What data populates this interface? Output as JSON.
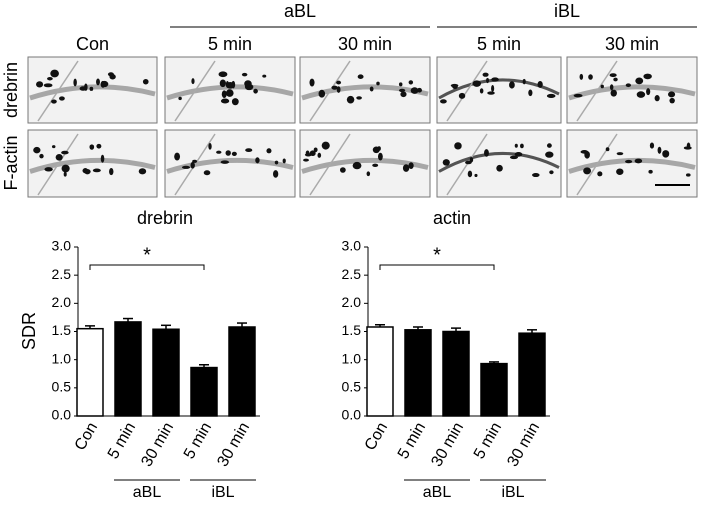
{
  "micrograph": {
    "group_labels": [
      "aBL",
      "iBL"
    ],
    "column_labels": [
      "Con",
      "5 min",
      "30 min",
      "5 min",
      "30 min"
    ],
    "row_labels": [
      "drebrin",
      "F-actin"
    ]
  },
  "chart_data": [
    {
      "type": "bar",
      "title": "drebrin",
      "ylabel": "SDR",
      "categories": [
        "Con",
        "5 min",
        "30 min",
        "5 min",
        "30 min"
      ],
      "groups": [
        "aBL",
        "iBL"
      ],
      "values": [
        1.55,
        1.67,
        1.54,
        0.86,
        1.58
      ],
      "errors": [
        0.05,
        0.06,
        0.07,
        0.05,
        0.07
      ],
      "colors": [
        "#ffffff",
        "#000000",
        "#000000",
        "#000000",
        "#000000"
      ],
      "ylim": [
        0,
        3
      ],
      "yticks": [
        {
          "value": 0,
          "label": "0.0"
        },
        {
          "value": 0.5,
          "label": "0.5"
        },
        {
          "value": 1,
          "label": "1.0"
        },
        {
          "value": 1.5,
          "label": "1.5"
        },
        {
          "value": 2,
          "label": "2.0"
        },
        {
          "value": 2.5,
          "label": "2.5"
        },
        {
          "value": 3,
          "label": "3.0"
        }
      ],
      "annotation": "*"
    },
    {
      "type": "bar",
      "title": "actin",
      "categories": [
        "Con",
        "5 min",
        "30 min",
        "5 min",
        "30 min"
      ],
      "groups": [
        "aBL",
        "iBL"
      ],
      "values": [
        1.58,
        1.53,
        1.5,
        0.93,
        1.47
      ],
      "errors": [
        0.04,
        0.05,
        0.06,
        0.03,
        0.06
      ],
      "colors": [
        "#ffffff",
        "#000000",
        "#000000",
        "#000000",
        "#000000"
      ],
      "ylim": [
        0,
        3
      ],
      "yticks": [
        {
          "value": 0,
          "label": "0.0"
        },
        {
          "value": 0.5,
          "label": "0.5"
        },
        {
          "value": 1,
          "label": "1.0"
        },
        {
          "value": 1.5,
          "label": "1.5"
        },
        {
          "value": 2,
          "label": "2.0"
        },
        {
          "value": 2.5,
          "label": "2.5"
        },
        {
          "value": 3,
          "label": "3.0"
        }
      ],
      "annotation": "*"
    }
  ]
}
